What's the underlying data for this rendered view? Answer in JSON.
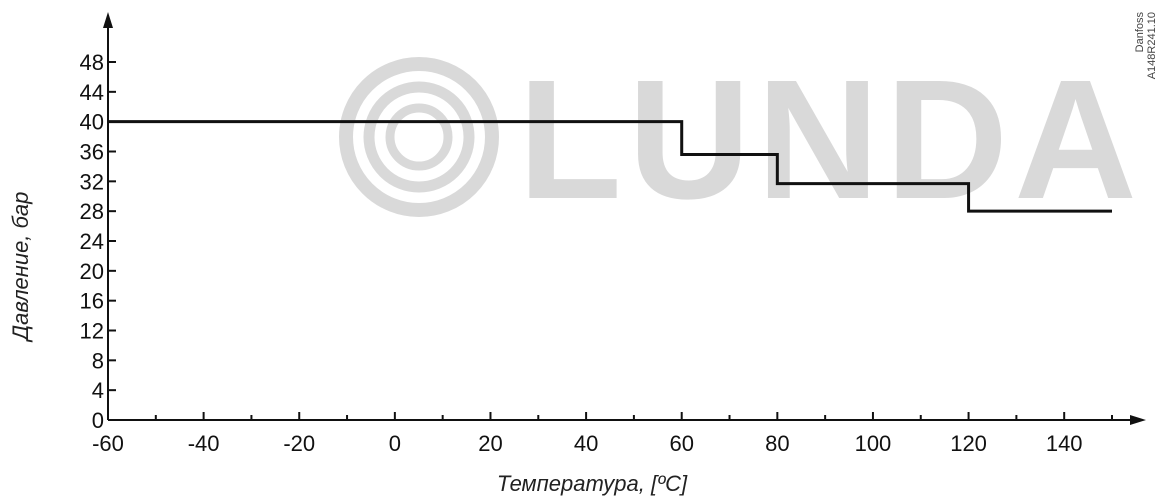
{
  "chart_data": {
    "type": "line",
    "title": "",
    "xlabel": "Температура, [ºC]",
    "ylabel": "Давление, бар",
    "xlim": [
      -60,
      150
    ],
    "ylim": [
      0,
      48
    ],
    "x_ticks": [
      -60,
      -40,
      -20,
      0,
      20,
      40,
      60,
      80,
      100,
      120,
      140
    ],
    "y_ticks": [
      0,
      4,
      8,
      12,
      16,
      20,
      24,
      28,
      32,
      36,
      40,
      44,
      48
    ],
    "grid": false,
    "series": [
      {
        "points": [
          {
            "x": -60,
            "y": 40
          },
          {
            "x": 60,
            "y": 40
          },
          {
            "x": 60,
            "y": 35.6
          },
          {
            "x": 80,
            "y": 35.6
          },
          {
            "x": 80,
            "y": 31.7
          },
          {
            "x": 120,
            "y": 31.7
          },
          {
            "x": 120,
            "y": 28
          },
          {
            "x": 150,
            "y": 28
          }
        ]
      }
    ],
    "line_color": "#111111"
  },
  "watermark": {
    "text": "LUNDA",
    "color": "#d9d9d9"
  },
  "credit": {
    "line1": "Danfoss",
    "line2": "A148R241.10"
  }
}
